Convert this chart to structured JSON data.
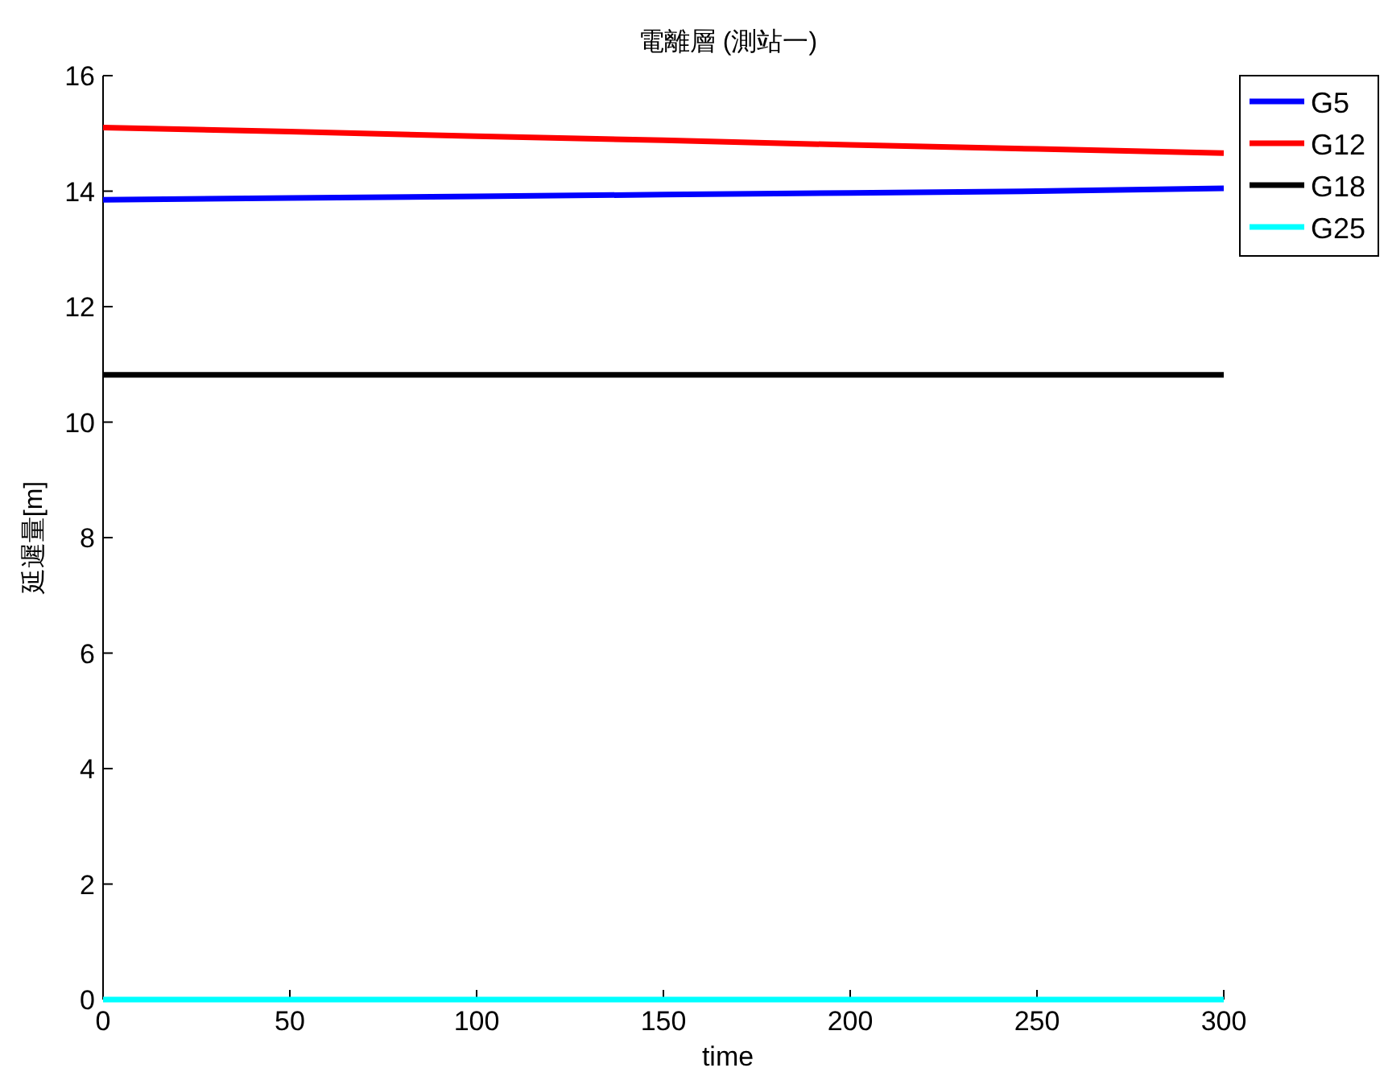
{
  "chart_data": {
    "type": "line",
    "title": "電離層 (測站一)",
    "xlabel": "time",
    "ylabel": "延遲量[m]",
    "x": [
      0,
      50,
      100,
      150,
      200,
      250,
      300
    ],
    "series": [
      {
        "name": "G5",
        "color": "#0000ff",
        "values": [
          13.85,
          13.88,
          13.91,
          13.94,
          13.97,
          14.0,
          14.05
        ]
      },
      {
        "name": "G12",
        "color": "#ff0000",
        "values": [
          15.1,
          15.03,
          14.95,
          14.88,
          14.8,
          14.73,
          14.66
        ]
      },
      {
        "name": "G18",
        "color": "#000000",
        "values": [
          10.82,
          10.82,
          10.82,
          10.82,
          10.82,
          10.82,
          10.82
        ]
      },
      {
        "name": "G25",
        "color": "#00ffff",
        "values": [
          0,
          0,
          0,
          0,
          0,
          0,
          0
        ]
      }
    ],
    "xlim": [
      0,
      300
    ],
    "xticks": [
      0,
      50,
      100,
      150,
      200,
      250,
      300
    ],
    "ylim": [
      0,
      16
    ],
    "yticks": [
      0,
      2,
      4,
      6,
      8,
      10,
      12,
      14,
      16
    ],
    "grid": false,
    "legend": "top right",
    "line_style": "solid",
    "marker": "none"
  }
}
